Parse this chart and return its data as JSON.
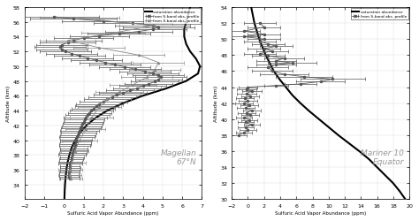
{
  "left": {
    "title": "Magellan\n67°N",
    "xlabel": "Sulfuric Acid Vapor Abundance (ppm)",
    "ylabel": "Altitude (km)",
    "xlim": [
      -2,
      7
    ],
    "ylim": [
      32,
      58
    ],
    "xticks": [
      -2,
      -1,
      0,
      1,
      2,
      3,
      4,
      5,
      6,
      7
    ],
    "yticks": [
      34,
      36,
      38,
      40,
      42,
      44,
      46,
      48,
      50,
      52,
      54,
      56,
      58
    ],
    "s_band": {
      "alt": [
        34.8,
        35.0,
        35.3,
        35.6,
        35.9,
        36.2,
        36.5,
        36.8,
        37.1,
        37.4,
        37.7,
        38.0,
        38.3,
        38.6,
        38.9,
        39.2,
        39.5,
        39.8,
        40.1,
        40.4,
        40.7,
        41.0,
        41.3,
        41.6,
        41.9,
        42.2,
        42.5,
        42.8,
        43.1,
        43.4,
        43.7,
        44.0,
        44.3,
        44.6,
        44.9,
        45.2,
        45.5,
        45.8,
        46.1,
        46.4,
        46.7,
        47.0,
        47.3,
        47.6,
        47.9,
        48.2,
        48.5,
        48.8,
        49.0,
        49.3,
        49.6,
        49.9,
        50.2,
        50.5,
        50.8,
        51.1,
        51.4,
        51.7,
        52.0,
        52.3,
        52.6,
        52.9,
        53.2,
        53.5,
        53.8,
        54.1,
        54.4,
        54.7,
        55.0,
        55.3,
        55.5,
        55.8,
        56.1,
        56.4,
        56.7
      ],
      "val": [
        0.3,
        0.28,
        0.25,
        0.28,
        0.3,
        0.32,
        0.3,
        0.32,
        0.35,
        0.38,
        0.4,
        0.42,
        0.45,
        0.5,
        0.52,
        0.55,
        0.58,
        0.6,
        0.62,
        0.65,
        0.7,
        0.75,
        0.8,
        0.85,
        0.9,
        0.95,
        1.0,
        1.05,
        1.1,
        1.2,
        1.3,
        1.4,
        1.5,
        1.65,
        1.8,
        2.0,
        2.2,
        2.45,
        2.7,
        3.0,
        3.35,
        3.7,
        4.0,
        4.3,
        4.6,
        4.8,
        4.9,
        4.8,
        4.5,
        4.1,
        3.6,
        3.1,
        2.6,
        2.1,
        1.65,
        1.2,
        0.8,
        0.4,
        0.1,
        -0.1,
        -0.2,
        -0.1,
        0.2,
        0.5,
        1.0,
        1.8,
        2.8,
        3.8,
        4.5,
        4.8,
        4.5,
        3.5,
        2.0,
        0.5,
        -0.5
      ],
      "err": [
        0.5,
        0.5,
        0.5,
        0.5,
        0.5,
        0.5,
        0.5,
        0.6,
        0.6,
        0.6,
        0.6,
        0.7,
        0.7,
        0.7,
        0.7,
        0.8,
        0.8,
        0.8,
        0.8,
        0.9,
        0.9,
        0.9,
        1.0,
        1.0,
        1.0,
        1.0,
        1.0,
        1.0,
        1.1,
        1.1,
        1.1,
        1.1,
        1.1,
        1.1,
        1.2,
        1.2,
        1.2,
        1.2,
        1.2,
        1.2,
        1.2,
        1.2,
        1.2,
        1.2,
        1.2,
        1.2,
        1.3,
        1.3,
        1.3,
        1.3,
        1.3,
        1.3,
        1.3,
        1.3,
        1.3,
        1.3,
        1.3,
        1.3,
        1.3,
        1.3,
        1.3,
        1.3,
        1.4,
        1.4,
        1.5,
        1.5,
        1.6,
        1.7,
        1.7,
        1.8,
        1.9,
        2.0,
        2.1,
        2.2,
        2.3
      ]
    },
    "x_band": {
      "alt": [
        34.8,
        35.3,
        36.0,
        37.0,
        38.5,
        40.0,
        41.5,
        43.0,
        44.5,
        45.5,
        46.5,
        47.5,
        48.5,
        49.5,
        50.5,
        51.5,
        52.5,
        53.5,
        54.5,
        55.5,
        56.5
      ],
      "val": [
        0.35,
        0.3,
        0.32,
        0.4,
        0.55,
        0.8,
        1.1,
        1.4,
        1.8,
        2.2,
        2.8,
        3.5,
        4.2,
        4.6,
        4.8,
        3.8,
        1.8,
        0.2,
        2.5,
        4.6,
        0.8
      ],
      "err": [
        0.6,
        0.6,
        0.6,
        0.7,
        0.7,
        0.9,
        1.0,
        1.1,
        1.1,
        1.2,
        1.2,
        1.2,
        1.3,
        1.3,
        1.3,
        1.3,
        1.3,
        1.4,
        1.6,
        1.8,
        2.0
      ]
    },
    "saturation_alt": [
      32,
      33,
      34,
      35,
      36,
      37,
      38,
      39,
      40,
      41,
      42,
      43,
      44,
      45,
      46,
      47,
      48,
      49,
      50,
      51,
      52,
      53,
      54,
      55,
      56,
      57,
      58
    ],
    "saturation_val": [
      0.03,
      0.04,
      0.06,
      0.09,
      0.13,
      0.19,
      0.28,
      0.4,
      0.58,
      0.82,
      1.15,
      1.6,
      2.2,
      3.0,
      4.0,
      5.2,
      6.2,
      6.8,
      6.9,
      6.7,
      6.4,
      6.2,
      6.1,
      6.1,
      6.2,
      6.3,
      6.4
    ]
  },
  "right": {
    "title": "Mariner 10\nEquator",
    "xlabel": "Sulfuric Acid Vapor Abundance (ppm)",
    "ylabel": "Altitude (km)",
    "xlim": [
      -2,
      20
    ],
    "ylim": [
      30,
      54
    ],
    "xticks": [
      -2,
      0,
      2,
      4,
      6,
      8,
      10,
      12,
      14,
      16,
      18,
      20
    ],
    "yticks": [
      30,
      32,
      34,
      36,
      38,
      40,
      42,
      44,
      46,
      48,
      50,
      52,
      54
    ],
    "s_band": {
      "alt": [
        38.0,
        38.3,
        38.7,
        39.0,
        39.3,
        39.6,
        39.9,
        40.2,
        40.5,
        40.8,
        41.1,
        41.4,
        41.7,
        42.0,
        42.3,
        42.6,
        42.9,
        43.2,
        43.5,
        43.7,
        44.0,
        44.2,
        44.4,
        44.7,
        45.0,
        45.3,
        45.6,
        46.0,
        46.5,
        46.8,
        47.0,
        47.3,
        47.6,
        47.9,
        48.2,
        48.5,
        48.8,
        49.1,
        49.4,
        49.7,
        50.0,
        50.3,
        50.6,
        51.0,
        51.5,
        52.0
      ],
      "val": [
        -1.2,
        -0.5,
        0.0,
        -0.3,
        0.5,
        -0.3,
        0.2,
        -0.5,
        0.3,
        -0.2,
        0.5,
        -0.3,
        0.2,
        -0.5,
        0.0,
        -0.4,
        0.3,
        -0.2,
        0.5,
        -0.2,
        0.0,
        3.5,
        6.5,
        9.0,
        10.5,
        7.0,
        4.5,
        3.0,
        2.5,
        3.5,
        5.5,
        3.5,
        4.5,
        2.5,
        1.5,
        3.0,
        2.0,
        3.5,
        2.5,
        1.5,
        2.0,
        -0.5,
        2.0,
        -0.5,
        2.0,
        1.5
      ],
      "err": [
        1.0,
        1.0,
        1.0,
        1.0,
        1.0,
        1.0,
        1.0,
        1.0,
        1.1,
        1.1,
        1.1,
        1.1,
        1.1,
        1.1,
        1.1,
        1.1,
        1.1,
        1.2,
        1.2,
        1.2,
        1.2,
        1.5,
        2.0,
        3.0,
        4.0,
        3.5,
        3.0,
        2.5,
        2.5,
        2.5,
        3.0,
        2.5,
        2.5,
        2.0,
        2.0,
        2.0,
        2.0,
        2.0,
        2.0,
        2.0,
        2.0,
        2.0,
        2.0,
        2.0,
        2.0,
        2.0
      ]
    },
    "saturation_alt": [
      30,
      31,
      32,
      33,
      34,
      35,
      36,
      37,
      38,
      39,
      40,
      41,
      42,
      43,
      44,
      45,
      46,
      47,
      48,
      49,
      50,
      51,
      52,
      53,
      54
    ],
    "saturation_val": [
      19.5,
      18.8,
      18.0,
      17.0,
      16.0,
      15.0,
      13.8,
      12.5,
      11.2,
      10.0,
      8.8,
      7.6,
      6.5,
      5.5,
      4.7,
      3.9,
      3.2,
      2.7,
      2.2,
      1.8,
      1.4,
      1.1,
      0.8,
      0.6,
      0.4
    ]
  },
  "bg_color": "#ffffff",
  "plot_bg": "#ffffff"
}
